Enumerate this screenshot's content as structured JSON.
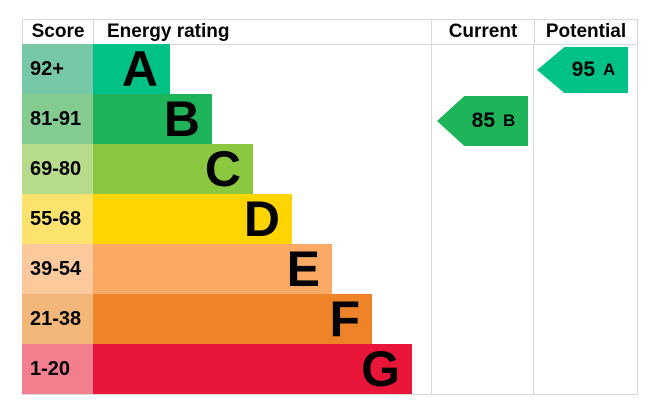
{
  "header": {
    "score": "Score",
    "energy_rating": "Energy rating",
    "current": "Current",
    "potential": "Potential"
  },
  "chart_data": {
    "type": "bar",
    "title": "Energy rating (EPC band chart)",
    "categories": [
      "A",
      "B",
      "C",
      "D",
      "E",
      "F",
      "G"
    ],
    "bands": [
      {
        "letter": "A",
        "score_range": "92+",
        "color": "#00c287",
        "tint_color": "#76c8a6"
      },
      {
        "letter": "B",
        "score_range": "81-91",
        "color": "#1eb45a",
        "tint_color": "#84cb90"
      },
      {
        "letter": "C",
        "score_range": "69-80",
        "color": "#8bc73f",
        "tint_color": "#b6dc8b"
      },
      {
        "letter": "D",
        "score_range": "55-68",
        "color": "#fed500",
        "tint_color": "#fce36e"
      },
      {
        "letter": "E",
        "score_range": "39-54",
        "color": "#fbaa65",
        "tint_color": "#fbc99c"
      },
      {
        "letter": "F",
        "score_range": "21-38",
        "color": "#ee8329",
        "tint_color": "#f4b77a"
      },
      {
        "letter": "G",
        "score_range": "1-20",
        "color": "#ea1639",
        "tint_color": "#f27e8e"
      }
    ],
    "current": {
      "score": "85",
      "band": "B",
      "band_index": 1,
      "arrow_color": "#1eb45a"
    },
    "potential": {
      "score": "95",
      "band": "A",
      "band_index": 0,
      "arrow_color": "#00c287"
    },
    "legend_position": "none",
    "grid": "column separators and outer border only"
  },
  "colors": {
    "grid_line": "#d9d9d9",
    "background": "#ffffff",
    "text": "#000000"
  }
}
